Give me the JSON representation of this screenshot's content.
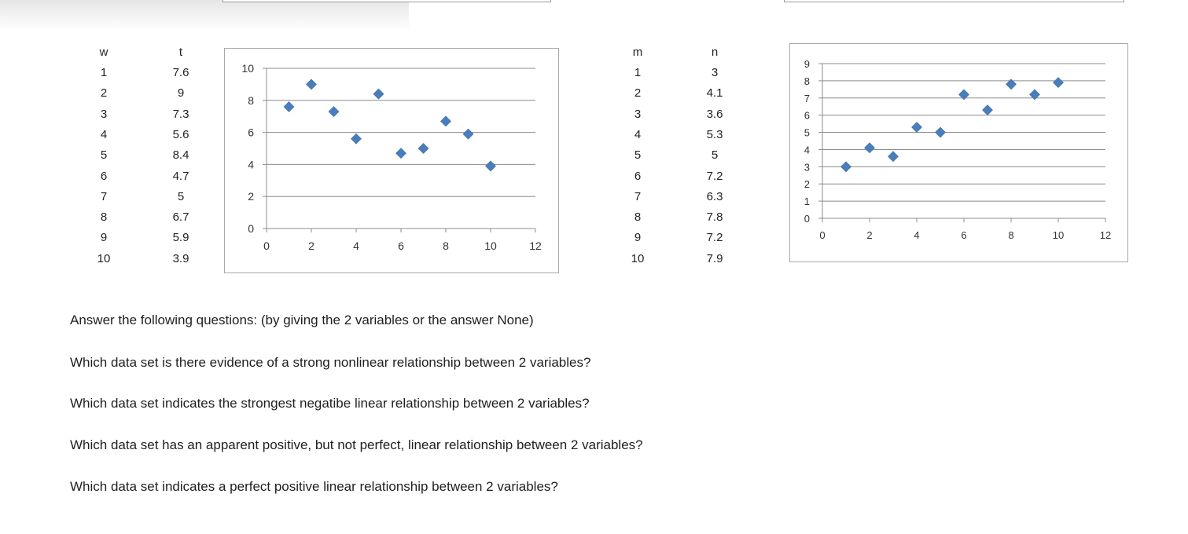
{
  "tables": [
    {
      "headers": [
        "w",
        "t"
      ],
      "rows": [
        [
          "1",
          "7.6"
        ],
        [
          "2",
          "9"
        ],
        [
          "3",
          "7.3"
        ],
        [
          "4",
          "5.6"
        ],
        [
          "5",
          "8.4"
        ],
        [
          "6",
          "4.7"
        ],
        [
          "7",
          "5"
        ],
        [
          "8",
          "6.7"
        ],
        [
          "9",
          "5.9"
        ],
        [
          "10",
          "3.9"
        ]
      ]
    },
    {
      "headers": [
        "m",
        "n"
      ],
      "rows": [
        [
          "1",
          "3"
        ],
        [
          "2",
          "4.1"
        ],
        [
          "3",
          "3.6"
        ],
        [
          "4",
          "5.3"
        ],
        [
          "5",
          "5"
        ],
        [
          "6",
          "7.2"
        ],
        [
          "7",
          "6.3"
        ],
        [
          "8",
          "7.8"
        ],
        [
          "9",
          "7.2"
        ],
        [
          "10",
          "7.9"
        ]
      ]
    }
  ],
  "chart_data": [
    {
      "type": "scatter",
      "marker_color": "#4a7ebb",
      "x": [
        1,
        2,
        3,
        4,
        5,
        6,
        7,
        8,
        9,
        10
      ],
      "y": [
        7.6,
        9,
        7.3,
        5.6,
        8.4,
        4.7,
        5,
        6.7,
        5.9,
        3.9
      ],
      "xlim": [
        0,
        12
      ],
      "ylim": [
        0,
        10
      ],
      "xticks": [
        "0",
        "2",
        "4",
        "6",
        "8",
        "10",
        "12"
      ],
      "yticks": [
        "0",
        "2",
        "4",
        "6",
        "8",
        "10"
      ],
      "grid": "horizontal"
    },
    {
      "type": "scatter",
      "marker_color": "#4a7ebb",
      "x": [
        1,
        2,
        3,
        4,
        5,
        6,
        7,
        8,
        9,
        10
      ],
      "y": [
        3,
        4.1,
        3.6,
        5.3,
        5,
        7.2,
        6.3,
        7.8,
        7.2,
        7.9
      ],
      "xlim": [
        0,
        12
      ],
      "ylim": [
        0,
        9
      ],
      "xticks": [
        "0",
        "2",
        "4",
        "6",
        "8",
        "10",
        "12"
      ],
      "yticks": [
        "0",
        "1",
        "2",
        "3",
        "4",
        "5",
        "6",
        "7",
        "8",
        "9"
      ],
      "grid": "horizontal"
    }
  ],
  "questions": {
    "intro": "Answer the following questions: (by giving the 2 variables or the answer None)",
    "q1": "Which data set is there evidence of a strong nonlinear relationship between 2 variables?",
    "q2": "Which data set indicates the strongest negatibe linear relationship between 2 variables?",
    "q3": "Which data set has an apparent positive, but not perfect, linear relationship between 2 variables?",
    "q4": "Which data set indicates a perfect positive linear relationship between 2 variables?"
  }
}
